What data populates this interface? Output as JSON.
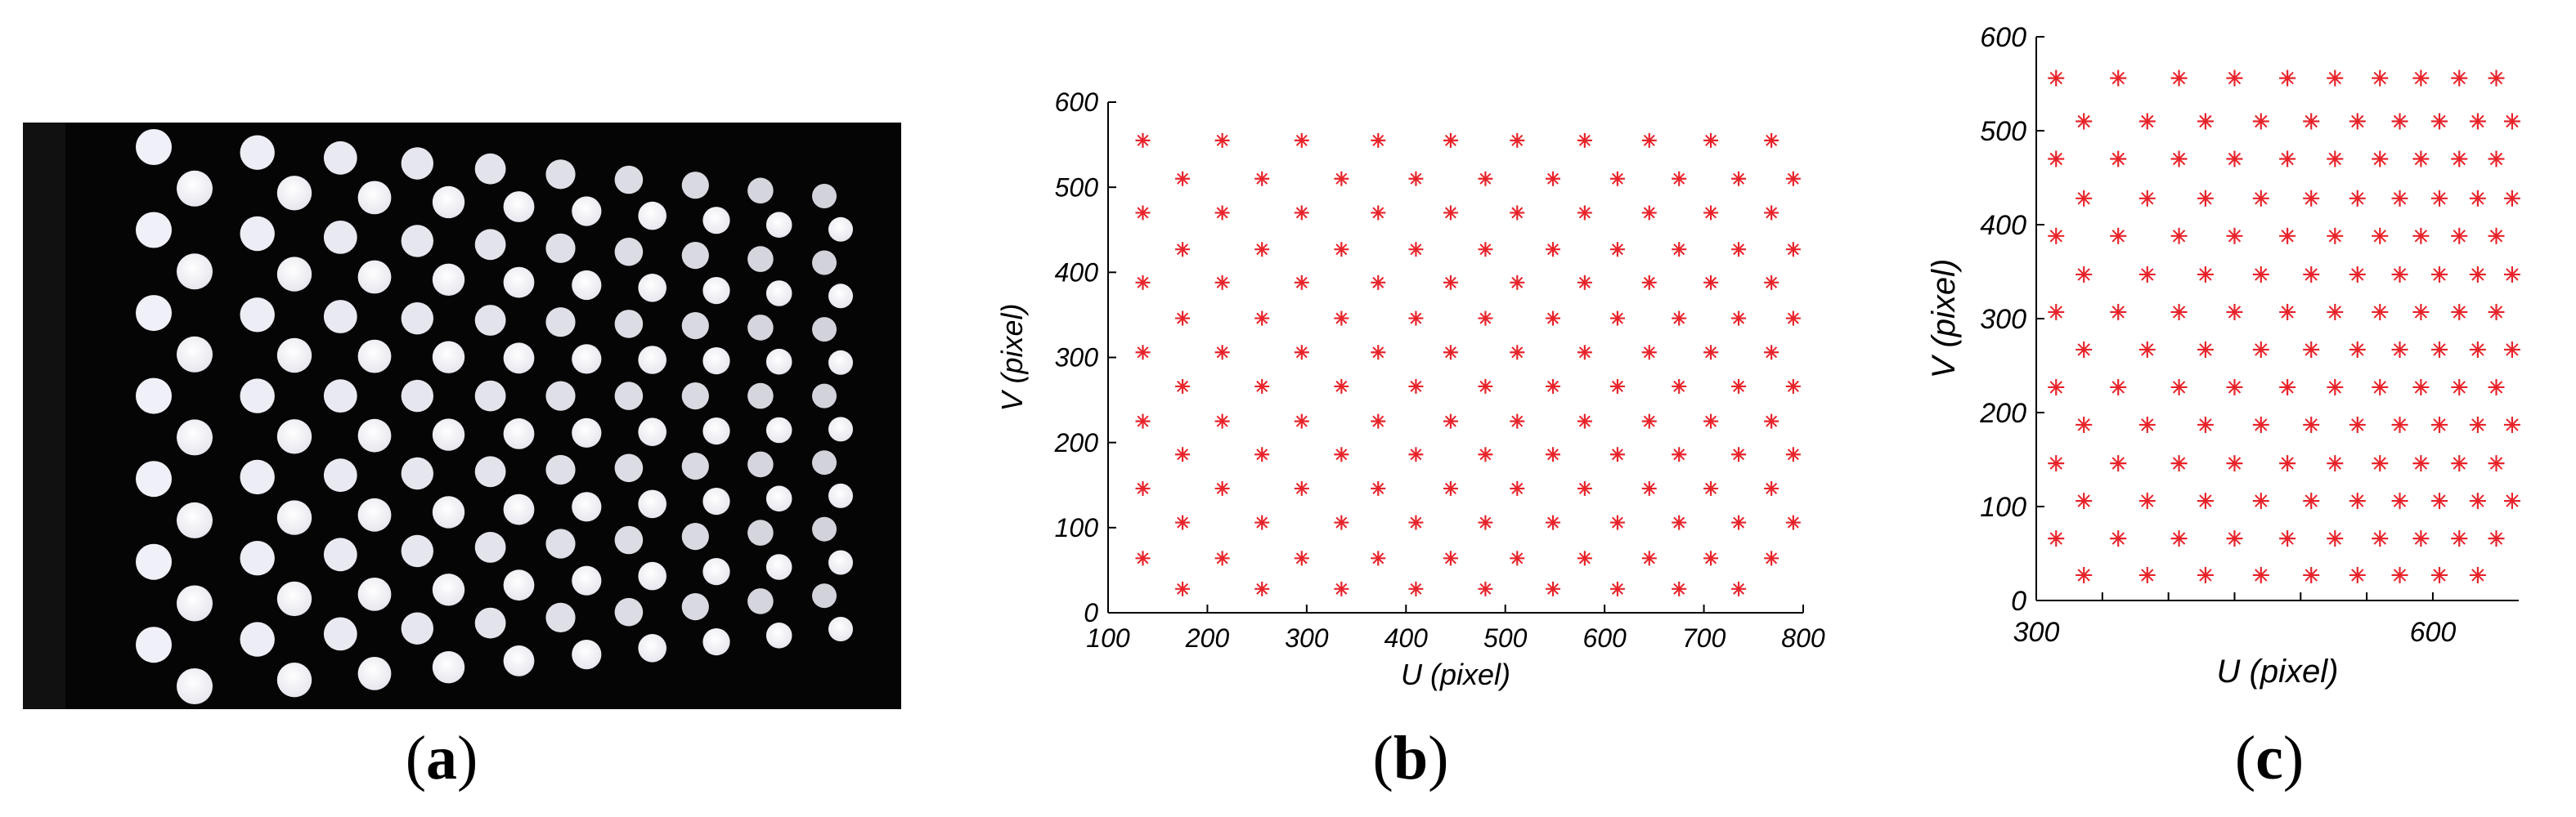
{
  "captions": {
    "a": "a",
    "b": "b",
    "c": "c"
  },
  "colors": {
    "marker": "#e8232a",
    "background": "#ffffff",
    "photo_bg": "#050505"
  },
  "chart_data": [
    {
      "panel": "b",
      "type": "scatter",
      "title": "",
      "xlabel": "U (pixel)",
      "ylabel": "V (pixel)",
      "xlim": [
        100,
        800
      ],
      "ylim": [
        0,
        600
      ],
      "xticks": [
        100,
        200,
        300,
        400,
        500,
        600,
        700,
        800
      ],
      "yticks": [
        0,
        100,
        200,
        300,
        400,
        500,
        600
      ],
      "grid": false,
      "marker": "star",
      "rows": [
        {
          "y": 555,
          "x": [
            135,
            215,
            295,
            372,
            445,
            512,
            580,
            645,
            707,
            768
          ]
        },
        {
          "y": 510,
          "x": [
            175,
            255,
            335,
            410,
            480,
            548,
            613,
            675,
            735,
            790
          ]
        },
        {
          "y": 470,
          "x": [
            135,
            215,
            295,
            372,
            445,
            512,
            580,
            645,
            707,
            768
          ]
        },
        {
          "y": 427,
          "x": [
            175,
            255,
            335,
            410,
            480,
            548,
            613,
            675,
            735,
            790
          ]
        },
        {
          "y": 388,
          "x": [
            135,
            215,
            295,
            372,
            445,
            512,
            580,
            645,
            707,
            768
          ]
        },
        {
          "y": 346,
          "x": [
            175,
            255,
            335,
            410,
            480,
            548,
            613,
            675,
            735,
            790
          ]
        },
        {
          "y": 306,
          "x": [
            135,
            215,
            295,
            372,
            445,
            512,
            580,
            645,
            707,
            768
          ]
        },
        {
          "y": 266,
          "x": [
            175,
            255,
            335,
            410,
            480,
            548,
            613,
            675,
            735,
            790
          ]
        },
        {
          "y": 225,
          "x": [
            135,
            215,
            295,
            372,
            445,
            512,
            580,
            645,
            707,
            768
          ]
        },
        {
          "y": 186,
          "x": [
            175,
            255,
            335,
            410,
            480,
            548,
            613,
            675,
            735,
            790
          ]
        },
        {
          "y": 146,
          "x": [
            135,
            215,
            295,
            372,
            445,
            512,
            580,
            645,
            707,
            768
          ]
        },
        {
          "y": 106,
          "x": [
            175,
            255,
            335,
            410,
            480,
            548,
            613,
            675,
            735,
            790
          ]
        },
        {
          "y": 64,
          "x": [
            135,
            215,
            295,
            372,
            445,
            512,
            580,
            645,
            707,
            768
          ]
        },
        {
          "y": 28,
          "x": [
            175,
            255,
            335,
            410,
            480,
            548,
            613,
            675,
            735
          ]
        }
      ]
    },
    {
      "panel": "c",
      "type": "scatter",
      "title": "",
      "xlabel": "U (pixel)",
      "ylabel": "V (pixel)",
      "xlim": [
        300,
        665
      ],
      "ylim": [
        0,
        600
      ],
      "xticks": [
        300,
        600
      ],
      "xticks_minor": [
        350,
        400,
        450,
        500,
        550
      ],
      "yticks": [
        0,
        100,
        200,
        300,
        400,
        500,
        600
      ],
      "grid": false,
      "marker": "star",
      "rows": [
        {
          "y": 556,
          "x": [
            315,
            362,
            408,
            450,
            490,
            526,
            560,
            591,
            620,
            648
          ]
        },
        {
          "y": 510,
          "x": [
            336,
            384,
            428,
            470,
            508,
            543,
            575,
            605,
            634,
            660
          ]
        },
        {
          "y": 470,
          "x": [
            315,
            362,
            408,
            450,
            490,
            526,
            560,
            591,
            620,
            648
          ]
        },
        {
          "y": 428,
          "x": [
            336,
            384,
            428,
            470,
            508,
            543,
            575,
            605,
            634,
            660
          ]
        },
        {
          "y": 388,
          "x": [
            315,
            362,
            408,
            450,
            490,
            526,
            560,
            591,
            620,
            648
          ]
        },
        {
          "y": 347,
          "x": [
            336,
            384,
            428,
            470,
            508,
            543,
            575,
            605,
            634,
            660
          ]
        },
        {
          "y": 307,
          "x": [
            315,
            362,
            408,
            450,
            490,
            526,
            560,
            591,
            620,
            648
          ]
        },
        {
          "y": 267,
          "x": [
            336,
            384,
            428,
            470,
            508,
            543,
            575,
            605,
            634,
            660
          ]
        },
        {
          "y": 227,
          "x": [
            315,
            362,
            408,
            450,
            490,
            526,
            560,
            591,
            620,
            648
          ]
        },
        {
          "y": 187,
          "x": [
            336,
            384,
            428,
            470,
            508,
            543,
            575,
            605,
            634,
            660
          ]
        },
        {
          "y": 146,
          "x": [
            315,
            362,
            408,
            450,
            490,
            526,
            560,
            591,
            620,
            648
          ]
        },
        {
          "y": 106,
          "x": [
            336,
            384,
            428,
            470,
            508,
            543,
            575,
            605,
            634,
            660
          ]
        },
        {
          "y": 66,
          "x": [
            315,
            362,
            408,
            450,
            490,
            526,
            560,
            591,
            620,
            648
          ]
        },
        {
          "y": 27,
          "x": [
            336,
            384,
            428,
            470,
            508,
            543,
            575,
            605,
            634
          ]
        }
      ]
    }
  ]
}
